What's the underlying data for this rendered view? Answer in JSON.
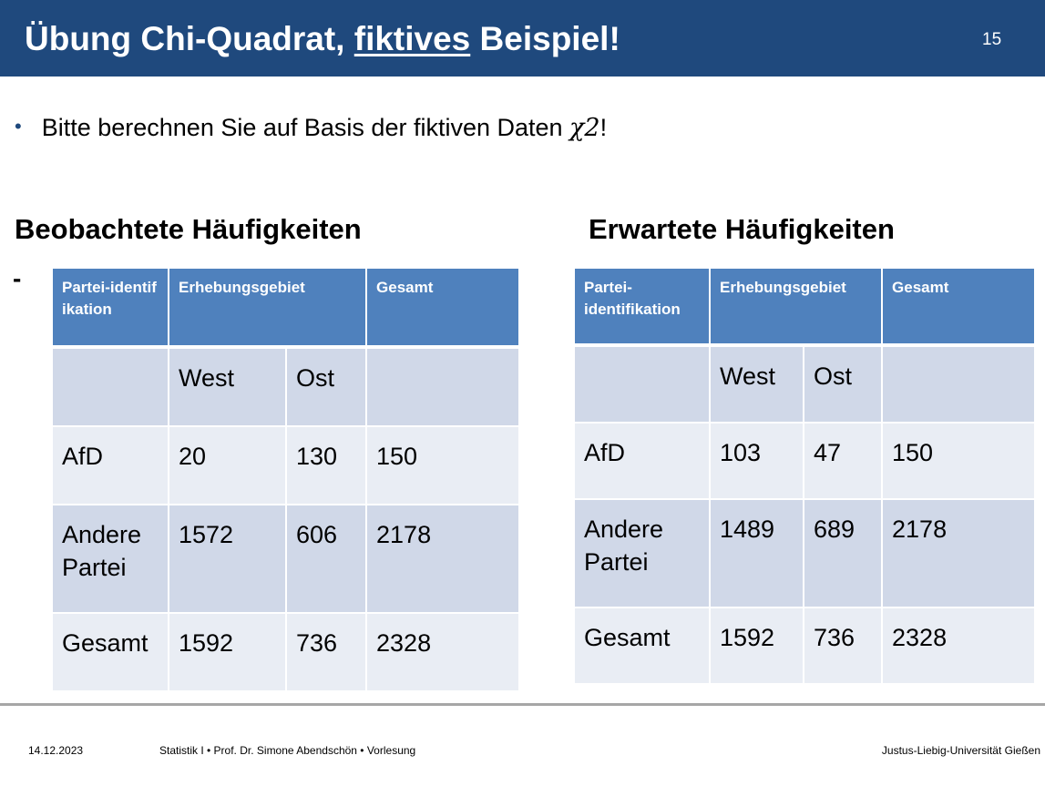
{
  "slide": {
    "title_part1": "Übung Chi-Quadrat, ",
    "title_underlined": "fiktives",
    "title_part2": " Beispiel!",
    "page_number": "15"
  },
  "bullet": {
    "marker": "•",
    "text": "Bitte berechnen Sie auf Basis der fiktiven Daten ",
    "symbol": "χ2",
    "suffix": "!"
  },
  "observed": {
    "heading": "Beobachtete Häufigkeiten",
    "dash": "-",
    "header": [
      "Partei-identifikation",
      "Erhebungsgebiet",
      "Gesamt"
    ],
    "subheader": [
      "",
      "West",
      "Ost",
      ""
    ],
    "rows": [
      [
        "AfD",
        "20",
        "130",
        "150"
      ],
      [
        "Andere Partei",
        "1572",
        "606",
        "2178"
      ],
      [
        "Gesamt",
        "1592",
        "736",
        "2328"
      ]
    ]
  },
  "expected": {
    "heading": "Erwartete Häufigkeiten",
    "header": [
      "Partei-identifikation",
      "Erhebungsgebiet",
      "Gesamt"
    ],
    "subheader": [
      "",
      "West",
      "Ost",
      ""
    ],
    "rows": [
      [
        "AfD",
        "103",
        "47",
        "150"
      ],
      [
        "Andere Partei",
        "1489",
        "689",
        "2178"
      ],
      [
        "Gesamt",
        "1592",
        "736",
        "2328"
      ]
    ]
  },
  "footer": {
    "date": "14.12.2023",
    "course": "Statistik I • Prof. Dr. Simone Abendschön • Vorlesung",
    "university": "Justus-Liebig-Universität Gießen"
  }
}
